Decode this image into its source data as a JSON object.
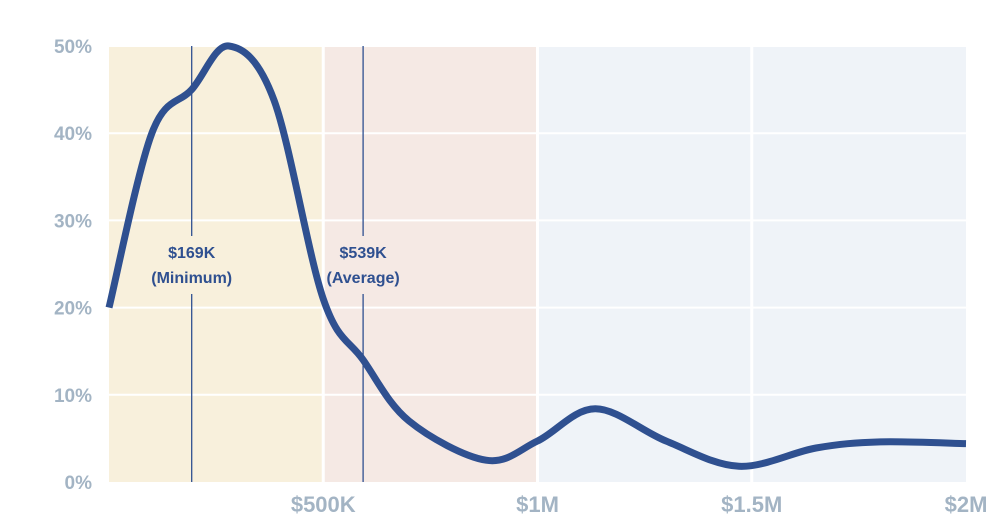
{
  "chart_data": {
    "type": "line",
    "title": "",
    "xlabel": "",
    "ylabel": "",
    "xlim": [
      0,
      2000000
    ],
    "ylim": [
      0,
      50
    ],
    "grid": true,
    "x_ticks": [
      {
        "value": 500000,
        "label": "$500K"
      },
      {
        "value": 1000000,
        "label": "$1M"
      },
      {
        "value": 1500000,
        "label": "$1.5M"
      },
      {
        "value": 2000000,
        "label": "$2M"
      }
    ],
    "y_ticks": [
      {
        "value": 0,
        "label": "0%"
      },
      {
        "value": 10,
        "label": "10%"
      },
      {
        "value": 20,
        "label": "20%"
      },
      {
        "value": 30,
        "label": "30%"
      },
      {
        "value": 40,
        "label": "40%"
      },
      {
        "value": 50,
        "label": "50%"
      }
    ],
    "bands": [
      {
        "from": 0,
        "to": 500000,
        "color": "#f8f0dc"
      },
      {
        "from": 500000,
        "to": 1000000,
        "color": "#f5e9e4"
      },
      {
        "from": 1000000,
        "to": 2000000,
        "color": "#eff3f8"
      }
    ],
    "series": [
      {
        "name": "Distribution",
        "color": "#2f5090",
        "x": [
          0,
          100000,
          193000,
          280000,
          385000,
          500000,
          593000,
          700000,
          880000,
          1000000,
          1135000,
          1300000,
          1470000,
          1650000,
          1800000,
          2000000
        ],
        "y": [
          20,
          40,
          45,
          50,
          43.8,
          21,
          14,
          7,
          2.5,
          4.7,
          8.4,
          4.7,
          1.8,
          3.9,
          4.6,
          4.4
        ]
      }
    ],
    "annotations": [
      {
        "x": 193000,
        "value_label": "$169K",
        "desc_label": "(Minimum)"
      },
      {
        "x": 593000,
        "value_label": "$539K",
        "desc_label": "(Average)"
      }
    ]
  }
}
